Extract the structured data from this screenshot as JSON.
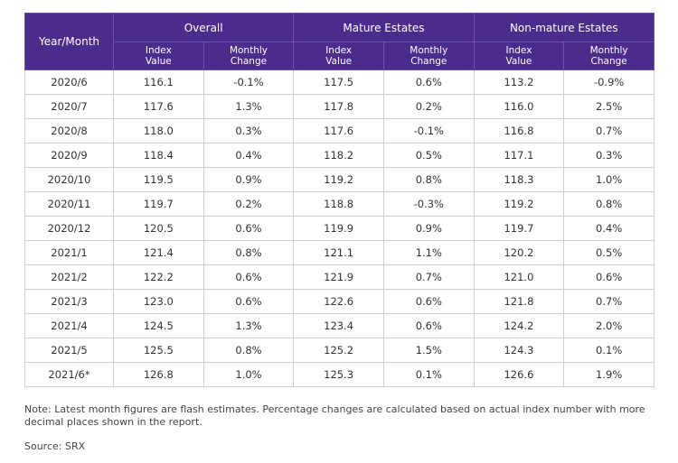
{
  "table": {
    "header": {
      "columns": [
        "Year/Month",
        "Overall",
        "Mature Estates",
        "Non-mature Estates"
      ],
      "subcolumns": [
        "Index Value",
        "Monthly Change",
        "Index Value",
        "Monthly Change",
        "Index Value",
        "Monthly Change"
      ]
    },
    "rows": [
      [
        "2020/6",
        "116.1",
        "-0.1%",
        "117.5",
        "0.6%",
        "113.2",
        "-0.9%"
      ],
      [
        "2020/7",
        "117.6",
        "1.3%",
        "117.8",
        "0.2%",
        "116.0",
        "2.5%"
      ],
      [
        "2020/8",
        "118.0",
        "0.3%",
        "117.6",
        "-0.1%",
        "116.8",
        "0.7%"
      ],
      [
        "2020/9",
        "118.4",
        "0.4%",
        "118.2",
        "0.5%",
        "117.1",
        "0.3%"
      ],
      [
        "2020/10",
        "119.5",
        "0.9%",
        "119.2",
        "0.8%",
        "118.3",
        "1.0%"
      ],
      [
        "2020/11",
        "119.7",
        "0.2%",
        "118.8",
        "-0.3%",
        "119.2",
        "0.8%"
      ],
      [
        "2020/12",
        "120.5",
        "0.6%",
        "119.9",
        "0.9%",
        "119.7",
        "0.4%"
      ],
      [
        "2021/1",
        "121.4",
        "0.8%",
        "121.1",
        "1.1%",
        "120.2",
        "0.5%"
      ],
      [
        "2021/2",
        "122.2",
        "0.6%",
        "121.9",
        "0.7%",
        "121.0",
        "0.6%"
      ],
      [
        "2021/3",
        "123.0",
        "0.6%",
        "122.6",
        "0.6%",
        "121.8",
        "0.7%"
      ],
      [
        "2021/4",
        "124.5",
        "1.3%",
        "123.4",
        "0.6%",
        "124.2",
        "2.0%"
      ],
      [
        "2021/5",
        "125.5",
        "0.8%",
        "125.2",
        "1.5%",
        "124.3",
        "0.1%"
      ],
      [
        "2021/6*",
        "126.8",
        "1.0%",
        "125.3",
        "0.1%",
        "126.6",
        "1.9%"
      ]
    ]
  },
  "note": "Note: Latest month figures are flash estimates. Percentage changes are calculated based on actual index number with more decimal places shown in the report.",
  "source": "Source: SRX"
}
